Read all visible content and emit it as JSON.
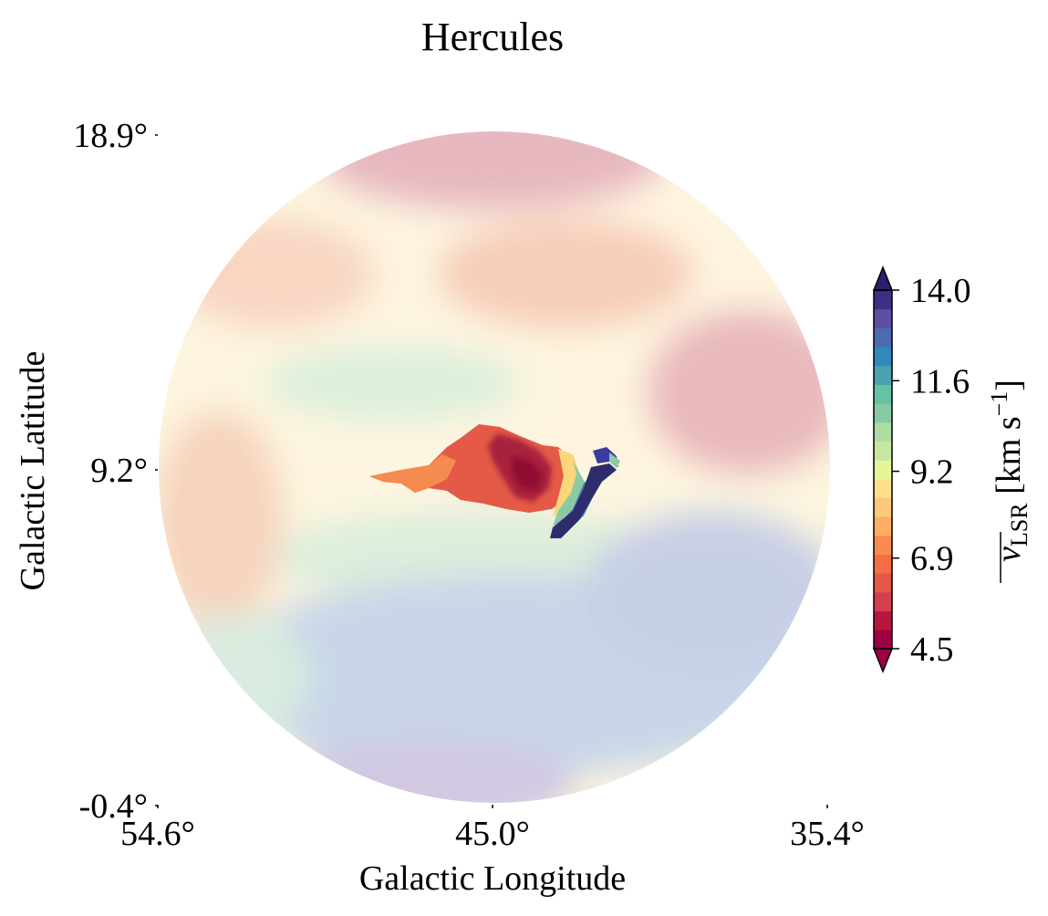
{
  "chart_data": {
    "type": "heatmap",
    "title": "Hercules",
    "xlabel": "Galactic Longitude",
    "ylabel": "Galactic Latitude",
    "xlim": [
      54.6,
      35.4
    ],
    "ylim": [
      -0.4,
      18.9
    ],
    "x_ticks": [
      "54.6°",
      "45.0°",
      "35.4°"
    ],
    "y_ticks": [
      "18.9°",
      "9.2°",
      "-0.4°"
    ],
    "colorbar": {
      "label_main": "v",
      "label_sub": "LSR",
      "label_units": "[km s",
      "label_exp": "−1",
      "label_close": "]",
      "min": 4.5,
      "max": 14.0,
      "ticks": [
        "4.5",
        "6.9",
        "9.2",
        "11.6",
        "14.0"
      ],
      "extend": "both",
      "colormap": "Spectral"
    },
    "field_of_view": "circular",
    "background_faded": true,
    "features": [
      {
        "name": "cloud",
        "l_range": [
          48.0,
          41.6
        ],
        "b_range": [
          6.5,
          10.4
        ],
        "v_range": [
          4.5,
          7.5
        ]
      },
      {
        "name": "gradient-tail",
        "l_range": [
          42.0,
          41.0
        ],
        "b_range": [
          6.5,
          10.2
        ],
        "v_range": [
          8.0,
          14.0
        ]
      }
    ],
    "colors": {
      "background_field": "faded-spectral",
      "cloud_core": "#a50026",
      "cloud_body": "#f46d43",
      "tail": "#2f2c6e"
    }
  }
}
